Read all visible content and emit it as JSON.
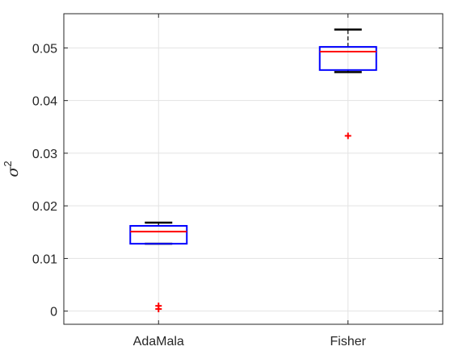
{
  "chart_data": {
    "type": "boxplot",
    "title": "",
    "xlabel": "",
    "ylabel": "σ",
    "ylabel_superscript": "2",
    "categories": [
      "AdaMala",
      "Fisher"
    ],
    "ylim": [
      -0.0025,
      0.0565
    ],
    "yticks": [
      0,
      0.01,
      0.02,
      0.03,
      0.04,
      0.05
    ],
    "ytick_labels": [
      "0",
      "0.01",
      "0.02",
      "0.03",
      "0.04",
      "0.05"
    ],
    "grid": true,
    "boxes": [
      {
        "category": "AdaMala",
        "whisker_low": 0.0128,
        "q1": 0.0128,
        "median": 0.0151,
        "q3": 0.0162,
        "whisker_high": 0.0168,
        "outliers": [
          0.0004,
          0.001
        ]
      },
      {
        "category": "Fisher",
        "whisker_low": 0.0454,
        "q1": 0.0458,
        "median": 0.0493,
        "q3": 0.0502,
        "whisker_high": 0.0535,
        "outliers": [
          0.0333
        ]
      }
    ],
    "colors": {
      "box": "#0000ff",
      "median": "#ff0000",
      "whisker": "#000000",
      "outlier": "#ff0000",
      "grid": "#e3e3e3",
      "axis": "#262626"
    }
  }
}
